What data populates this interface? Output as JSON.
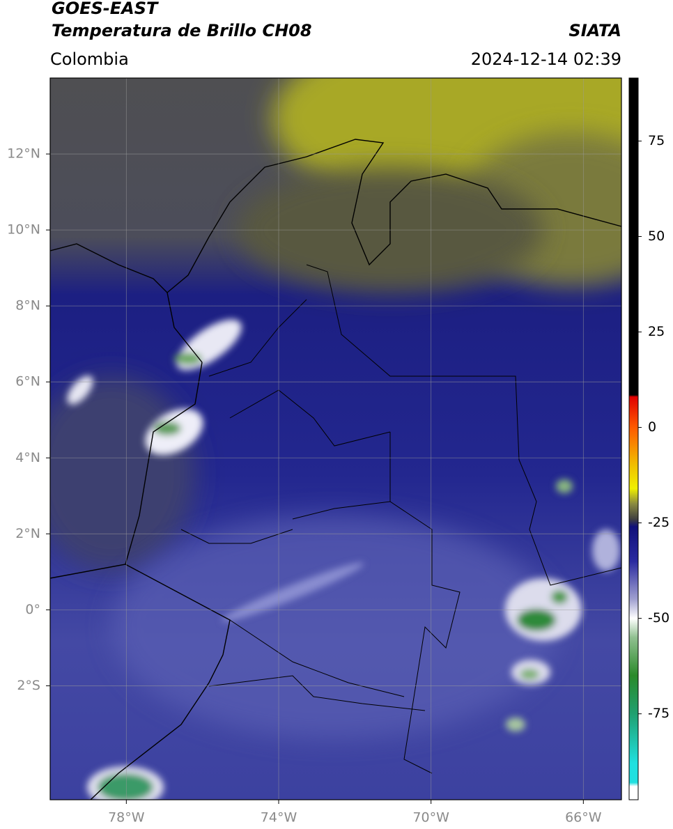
{
  "header": {
    "title": "GOES-EAST",
    "subtitle": "Temperatura de Brillo CH08",
    "region": "Colombia",
    "source": "SIATA",
    "datetime": "2024-12-14 02:39"
  },
  "map": {
    "lon_range": [
      -80,
      -65
    ],
    "lat_range": [
      -5,
      14
    ],
    "lon_ticks": [
      {
        "value": -78,
        "label": "78°W"
      },
      {
        "value": -74,
        "label": "74°W"
      },
      {
        "value": -70,
        "label": "70°W"
      },
      {
        "value": -66,
        "label": "66°W"
      }
    ],
    "lat_ticks": [
      {
        "value": 12,
        "label": "12°N"
      },
      {
        "value": 10,
        "label": "10°N"
      },
      {
        "value": 8,
        "label": "8°N"
      },
      {
        "value": 6,
        "label": "6°N"
      },
      {
        "value": 4,
        "label": "4°N"
      },
      {
        "value": 2,
        "label": "2°N"
      },
      {
        "value": 0,
        "label": "0°"
      },
      {
        "value": -2,
        "label": "2°S"
      }
    ],
    "grid": true
  },
  "colorbar": {
    "range": [
      -97.5,
      91.5
    ],
    "ticks": [
      75,
      50,
      25,
      0,
      -25,
      -50,
      -75
    ],
    "stops": [
      {
        "value": 91.5,
        "color": "#000000"
      },
      {
        "value": 8.5,
        "color": "#000000"
      },
      {
        "value": 8,
        "color": "#e00000"
      },
      {
        "value": 0,
        "color": "#ff5a00"
      },
      {
        "value": -10,
        "color": "#f0c000"
      },
      {
        "value": -16,
        "color": "#f0f000"
      },
      {
        "value": -20,
        "color": "#8a8a40"
      },
      {
        "value": -24,
        "color": "#404040"
      },
      {
        "value": -26,
        "color": "#10107a"
      },
      {
        "value": -35,
        "color": "#2a2aa0"
      },
      {
        "value": -45,
        "color": "#a0a0d0"
      },
      {
        "value": -50,
        "color": "#ffffff"
      },
      {
        "value": -55,
        "color": "#90c090"
      },
      {
        "value": -65,
        "color": "#2a8a2a"
      },
      {
        "value": -75,
        "color": "#20a070"
      },
      {
        "value": -88,
        "color": "#20e0e0"
      },
      {
        "value": -93,
        "color": "#20e0e0"
      },
      {
        "value": -94,
        "color": "#ffffff"
      },
      {
        "value": -97.5,
        "color": "#ffffff"
      }
    ]
  }
}
